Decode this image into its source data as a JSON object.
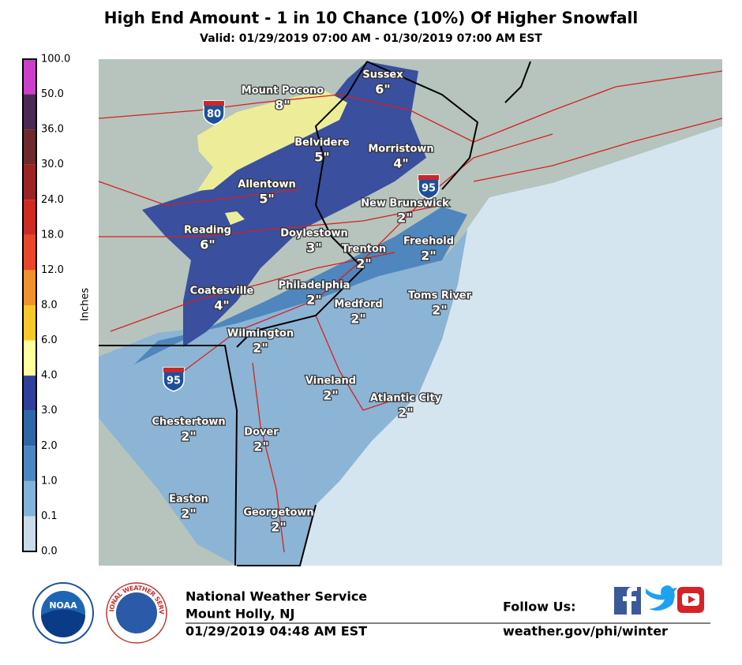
{
  "header": {
    "title": "High End Amount - 1 in 10 Chance (10%) Of Higher Snowfall",
    "subtitle": "Valid: 01/29/2019 07:00 AM - 01/30/2019 07:00 AM EST"
  },
  "legend": {
    "label": "Inches",
    "ticks": [
      "100.0",
      "50.0",
      "36.0",
      "30.0",
      "24.0",
      "18.0",
      "12.0",
      "8.0",
      "6.0",
      "4.0",
      "3.0",
      "2.0",
      "1.0",
      "0.1",
      "0.0"
    ],
    "colors": [
      "#cc3fc8",
      "#4c2a56",
      "#6e2a2c",
      "#9c2426",
      "#cf2a22",
      "#e8472a",
      "#f0922e",
      "#f8c82a",
      "#ffff9e",
      "#2f3f9c",
      "#2e67a8",
      "#4a87c0",
      "#82b3da",
      "#cadcea",
      "#f5f5f5"
    ]
  },
  "cities": [
    {
      "name": "Mount Pocono",
      "amount": "8\""
    },
    {
      "name": "Sussex",
      "amount": "6\""
    },
    {
      "name": "Belvidere",
      "amount": "5\""
    },
    {
      "name": "Morristown",
      "amount": "4\""
    },
    {
      "name": "Allentown",
      "amount": "5\""
    },
    {
      "name": "New Brunswick",
      "amount": "2\""
    },
    {
      "name": "Reading",
      "amount": "6\""
    },
    {
      "name": "Doylestown",
      "amount": "3\""
    },
    {
      "name": "Trenton",
      "amount": "2\""
    },
    {
      "name": "Freehold",
      "amount": "2\""
    },
    {
      "name": "Philadelphia",
      "amount": "2\""
    },
    {
      "name": "Coatesville",
      "amount": "4\""
    },
    {
      "name": "Medford",
      "amount": "2\""
    },
    {
      "name": "Toms River",
      "amount": "2\""
    },
    {
      "name": "Wilmington",
      "amount": "2\""
    },
    {
      "name": "Vineland",
      "amount": "2\""
    },
    {
      "name": "Atlantic City",
      "amount": "2\""
    },
    {
      "name": "Chestertown",
      "amount": "2\""
    },
    {
      "name": "Dover",
      "amount": "2\""
    },
    {
      "name": "Easton",
      "amount": "2\""
    },
    {
      "name": "Georgetown",
      "amount": "2\""
    }
  ],
  "shields": [
    "80",
    "95",
    "95"
  ],
  "footer": {
    "noaa": "NOAA",
    "nws": "NATIONAL WEATHER SERVICE",
    "org": "National Weather Service",
    "office": "Mount Holly, NJ",
    "issued": "01/29/2019 04:48 AM EST",
    "follow": "Follow Us:",
    "url": "weather.gov/phi/winter"
  }
}
